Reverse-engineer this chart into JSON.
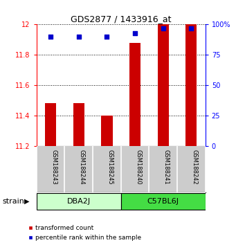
{
  "title": "GDS2877 / 1433916_at",
  "samples": [
    "GSM188243",
    "GSM188244",
    "GSM188245",
    "GSM188240",
    "GSM188241",
    "GSM188242"
  ],
  "groups": [
    "DBA2J",
    "DBA2J",
    "DBA2J",
    "C57BL6J",
    "C57BL6J",
    "C57BL6J"
  ],
  "group_labels": [
    "DBA2J",
    "C57BL6J"
  ],
  "transformed_counts": [
    11.48,
    11.48,
    11.4,
    11.88,
    12.0,
    12.0
  ],
  "percentile_ranks": [
    90,
    90,
    90,
    93,
    97,
    97
  ],
  "ylim_left": [
    11.2,
    12.0
  ],
  "ylim_right": [
    0,
    100
  ],
  "bar_color": "#CC0000",
  "dot_color": "#0000CC",
  "yticks_left": [
    11.2,
    11.4,
    11.6,
    11.8,
    12.0
  ],
  "yticks_left_labels": [
    "11.2",
    "11.4",
    "11.6",
    "11.8",
    "12"
  ],
  "yticks_right": [
    0,
    25,
    50,
    75,
    100
  ],
  "yticks_right_labels": [
    "0",
    "25",
    "50",
    "75",
    "100%"
  ],
  "legend_red": "transformed count",
  "legend_blue": "percentile rank within the sample",
  "strain_label": "strain",
  "group_color_dba": "#CCFFCC",
  "group_color_c57": "#44DD44",
  "sample_bg_color": "#CCCCCC",
  "bar_width": 0.4
}
